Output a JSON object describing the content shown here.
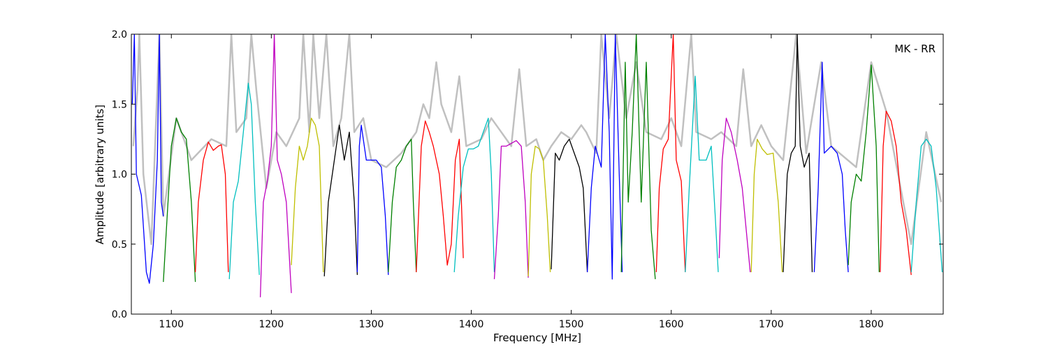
{
  "chart_data": {
    "type": "line",
    "title": "",
    "xlabel": "Frequency [MHz]",
    "ylabel": "Amplitude [arbitrary units]",
    "annotation": "MK - RR",
    "annotation_position": "top-right",
    "xlim": [
      1060,
      1872
    ],
    "ylim": [
      0.0,
      2.0
    ],
    "xticks": [
      1100,
      1200,
      1300,
      1400,
      1500,
      1600,
      1700,
      1800
    ],
    "yticks": [
      0.0,
      0.5,
      1.0,
      1.5,
      2.0
    ],
    "xtick_labels": [
      "1100",
      "1200",
      "1300",
      "1400",
      "1500",
      "1600",
      "1700",
      "1800"
    ],
    "ytick_labels": [
      "0.0",
      "0.5",
      "1.0",
      "1.5",
      "2.0"
    ],
    "grid": false,
    "background_color": "#c0c0c0",
    "background_series": [
      [
        1062,
        1.2
      ],
      [
        1066,
        1.6
      ],
      [
        1068,
        2.0
      ],
      [
        1072,
        1.0
      ],
      [
        1080,
        0.5
      ],
      [
        1088,
        2.0
      ],
      [
        1092,
        0.7
      ],
      [
        1105,
        1.4
      ],
      [
        1120,
        1.1
      ],
      [
        1140,
        1.25
      ],
      [
        1155,
        1.2
      ],
      [
        1160,
        2.0
      ],
      [
        1165,
        1.3
      ],
      [
        1175,
        1.4
      ],
      [
        1180,
        2.0
      ],
      [
        1185,
        1.6
      ],
      [
        1195,
        0.9
      ],
      [
        1205,
        1.3
      ],
      [
        1215,
        1.2
      ],
      [
        1228,
        1.4
      ],
      [
        1232,
        2.0
      ],
      [
        1238,
        1.3
      ],
      [
        1242,
        2.0
      ],
      [
        1248,
        1.4
      ],
      [
        1255,
        2.0
      ],
      [
        1262,
        1.2
      ],
      [
        1270,
        1.4
      ],
      [
        1278,
        2.0
      ],
      [
        1283,
        1.3
      ],
      [
        1292,
        1.4
      ],
      [
        1300,
        1.1
      ],
      [
        1315,
        1.05
      ],
      [
        1330,
        1.15
      ],
      [
        1345,
        1.3
      ],
      [
        1352,
        1.5
      ],
      [
        1358,
        1.4
      ],
      [
        1365,
        1.8
      ],
      [
        1370,
        1.5
      ],
      [
        1380,
        1.3
      ],
      [
        1388,
        1.7
      ],
      [
        1395,
        1.2
      ],
      [
        1410,
        1.25
      ],
      [
        1420,
        1.4
      ],
      [
        1430,
        1.3
      ],
      [
        1440,
        1.2
      ],
      [
        1448,
        1.75
      ],
      [
        1455,
        1.2
      ],
      [
        1465,
        1.25
      ],
      [
        1472,
        1.1
      ],
      [
        1480,
        1.2
      ],
      [
        1490,
        1.3
      ],
      [
        1500,
        1.25
      ],
      [
        1510,
        1.35
      ],
      [
        1515,
        1.3
      ],
      [
        1525,
        1.15
      ],
      [
        1530,
        2.0
      ],
      [
        1538,
        1.4
      ],
      [
        1545,
        2.0
      ],
      [
        1555,
        1.4
      ],
      [
        1565,
        1.8
      ],
      [
        1575,
        1.3
      ],
      [
        1590,
        1.25
      ],
      [
        1600,
        1.4
      ],
      [
        1610,
        1.2
      ],
      [
        1620,
        2.0
      ],
      [
        1625,
        1.3
      ],
      [
        1640,
        1.25
      ],
      [
        1650,
        1.3
      ],
      [
        1665,
        1.2
      ],
      [
        1672,
        1.75
      ],
      [
        1680,
        1.2
      ],
      [
        1690,
        1.35
      ],
      [
        1700,
        1.2
      ],
      [
        1712,
        1.1
      ],
      [
        1725,
        2.0
      ],
      [
        1735,
        1.15
      ],
      [
        1750,
        1.8
      ],
      [
        1760,
        1.2
      ],
      [
        1785,
        1.05
      ],
      [
        1800,
        1.8
      ],
      [
        1815,
        1.45
      ],
      [
        1840,
        0.5
      ],
      [
        1855,
        1.3
      ],
      [
        1870,
        0.8
      ]
    ],
    "series": [
      {
        "color": "#0000ff",
        "points": [
          [
            1061,
            1.5
          ],
          [
            1063,
            2.0
          ],
          [
            1065,
            1.0
          ],
          [
            1070,
            0.85
          ],
          [
            1075,
            0.3
          ],
          [
            1078,
            0.22
          ],
          [
            1082,
            0.5
          ],
          [
            1086,
            1.1
          ],
          [
            1088,
            2.0
          ],
          [
            1090,
            0.8
          ],
          [
            1092,
            0.7
          ]
        ]
      },
      {
        "color": "#008000",
        "points": [
          [
            1092,
            0.23
          ],
          [
            1095,
            0.6
          ],
          [
            1100,
            1.2
          ],
          [
            1105,
            1.4
          ],
          [
            1110,
            1.3
          ],
          [
            1115,
            1.25
          ],
          [
            1120,
            0.8
          ],
          [
            1124,
            0.23
          ]
        ]
      },
      {
        "color": "#ff0000",
        "points": [
          [
            1124,
            0.3
          ],
          [
            1127,
            0.8
          ],
          [
            1132,
            1.1
          ],
          [
            1137,
            1.23
          ],
          [
            1142,
            1.17
          ],
          [
            1147,
            1.2
          ],
          [
            1150,
            1.21
          ],
          [
            1154,
            1.0
          ],
          [
            1157,
            0.3
          ]
        ]
      },
      {
        "color": "#00bfbf",
        "points": [
          [
            1158,
            0.25
          ],
          [
            1162,
            0.8
          ],
          [
            1167,
            0.95
          ],
          [
            1172,
            1.3
          ],
          [
            1177,
            1.65
          ],
          [
            1180,
            1.5
          ],
          [
            1184,
            0.8
          ],
          [
            1188,
            0.28
          ]
        ]
      },
      {
        "color": "#bf00bf",
        "points": [
          [
            1189,
            0.12
          ],
          [
            1192,
            0.8
          ],
          [
            1196,
            0.95
          ],
          [
            1200,
            1.2
          ],
          [
            1203,
            2.0
          ],
          [
            1206,
            1.1
          ],
          [
            1210,
            1.0
          ],
          [
            1215,
            0.8
          ],
          [
            1220,
            0.15
          ]
        ]
      },
      {
        "color": "#bfbf00",
        "points": [
          [
            1220,
            0.35
          ],
          [
            1224,
            0.9
          ],
          [
            1228,
            1.2
          ],
          [
            1232,
            1.1
          ],
          [
            1236,
            1.2
          ],
          [
            1240,
            1.4
          ],
          [
            1244,
            1.35
          ],
          [
            1248,
            1.2
          ],
          [
            1252,
            0.3
          ]
        ]
      },
      {
        "color": "#000000",
        "points": [
          [
            1253,
            0.27
          ],
          [
            1257,
            0.8
          ],
          [
            1262,
            1.05
          ],
          [
            1268,
            1.35
          ],
          [
            1273,
            1.1
          ],
          [
            1278,
            1.3
          ],
          [
            1283,
            0.8
          ],
          [
            1286,
            0.28
          ]
        ]
      },
      {
        "color": "#0000ff",
        "points": [
          [
            1286,
            0.3
          ],
          [
            1288,
            1.2
          ],
          [
            1290,
            1.35
          ],
          [
            1295,
            1.1
          ],
          [
            1300,
            1.1
          ],
          [
            1305,
            1.1
          ],
          [
            1310,
            1.05
          ],
          [
            1314,
            0.7
          ],
          [
            1317,
            0.28
          ]
        ]
      },
      {
        "color": "#008000",
        "points": [
          [
            1317,
            0.3
          ],
          [
            1321,
            0.8
          ],
          [
            1325,
            1.05
          ],
          [
            1330,
            1.1
          ],
          [
            1335,
            1.2
          ],
          [
            1340,
            1.25
          ],
          [
            1342,
            0.8
          ],
          [
            1345,
            0.3
          ]
        ]
      },
      {
        "color": "#ff0000",
        "points": [
          [
            1345,
            0.3
          ],
          [
            1350,
            1.2
          ],
          [
            1354,
            1.38
          ],
          [
            1358,
            1.3
          ],
          [
            1362,
            1.2
          ],
          [
            1368,
            1.0
          ],
          [
            1372,
            0.7
          ],
          [
            1376,
            0.35
          ],
          [
            1380,
            0.5
          ],
          [
            1384,
            1.1
          ],
          [
            1388,
            1.25
          ],
          [
            1392,
            0.4
          ]
        ]
      },
      {
        "color": "#00bfbf",
        "points": [
          [
            1383,
            0.3
          ],
          [
            1387,
            0.7
          ],
          [
            1392,
            1.05
          ],
          [
            1397,
            1.18
          ],
          [
            1402,
            1.18
          ],
          [
            1407,
            1.2
          ],
          [
            1412,
            1.3
          ],
          [
            1417,
            1.4
          ],
          [
            1420,
            1.0
          ],
          [
            1423,
            0.3
          ]
        ]
      },
      {
        "color": "#bf00bf",
        "points": [
          [
            1423,
            0.25
          ],
          [
            1427,
            0.7
          ],
          [
            1430,
            1.2
          ],
          [
            1435,
            1.2
          ],
          [
            1440,
            1.22
          ],
          [
            1445,
            1.24
          ],
          [
            1450,
            1.2
          ],
          [
            1454,
            0.8
          ],
          [
            1457,
            0.26
          ]
        ]
      },
      {
        "color": "#bfbf00",
        "points": [
          [
            1457,
            0.27
          ],
          [
            1460,
            1.0
          ],
          [
            1464,
            1.2
          ],
          [
            1468,
            1.18
          ],
          [
            1472,
            1.1
          ],
          [
            1476,
            0.7
          ],
          [
            1479,
            0.3
          ]
        ]
      },
      {
        "color": "#000000",
        "points": [
          [
            1480,
            0.32
          ],
          [
            1484,
            1.15
          ],
          [
            1488,
            1.1
          ],
          [
            1493,
            1.2
          ],
          [
            1498,
            1.25
          ],
          [
            1503,
            1.15
          ],
          [
            1508,
            1.05
          ],
          [
            1512,
            0.9
          ],
          [
            1516,
            0.3
          ]
        ]
      },
      {
        "color": "#0000ff",
        "points": [
          [
            1516,
            0.3
          ],
          [
            1520,
            0.9
          ],
          [
            1524,
            1.2
          ],
          [
            1530,
            1.05
          ],
          [
            1534,
            2.0
          ],
          [
            1538,
            1.3
          ],
          [
            1541,
            0.25
          ],
          [
            1544,
            2.0
          ],
          [
            1548,
            1.0
          ],
          [
            1551,
            0.3
          ]
        ]
      },
      {
        "color": "#008000",
        "points": [
          [
            1550,
            0.3
          ],
          [
            1554,
            1.8
          ],
          [
            1557,
            0.8
          ],
          [
            1561,
            1.3
          ],
          [
            1565,
            2.0
          ],
          [
            1570,
            0.8
          ],
          [
            1575,
            1.8
          ],
          [
            1580,
            0.6
          ],
          [
            1584,
            0.25
          ]
        ]
      },
      {
        "color": "#ff0000",
        "points": [
          [
            1585,
            0.3
          ],
          [
            1588,
            0.9
          ],
          [
            1592,
            1.18
          ],
          [
            1597,
            1.25
          ],
          [
            1602,
            2.0
          ],
          [
            1605,
            1.1
          ],
          [
            1610,
            0.95
          ],
          [
            1614,
            0.3
          ]
        ]
      },
      {
        "color": "#00bfbf",
        "points": [
          [
            1614,
            0.3
          ],
          [
            1618,
            0.9
          ],
          [
            1621,
            1.3
          ],
          [
            1624,
            1.7
          ],
          [
            1628,
            1.1
          ],
          [
            1635,
            1.1
          ],
          [
            1640,
            1.2
          ],
          [
            1644,
            0.7
          ],
          [
            1647,
            0.3
          ]
        ]
      },
      {
        "color": "#bf00bf",
        "points": [
          [
            1648,
            0.4
          ],
          [
            1651,
            1.1
          ],
          [
            1655,
            1.4
          ],
          [
            1660,
            1.3
          ],
          [
            1666,
            1.1
          ],
          [
            1671,
            0.9
          ],
          [
            1675,
            0.6
          ],
          [
            1679,
            0.3
          ]
        ]
      },
      {
        "color": "#bfbf00",
        "points": [
          [
            1680,
            0.3
          ],
          [
            1683,
            1.0
          ],
          [
            1686,
            1.25
          ],
          [
            1691,
            1.18
          ],
          [
            1696,
            1.14
          ],
          [
            1702,
            1.15
          ],
          [
            1707,
            0.8
          ],
          [
            1711,
            0.3
          ]
        ]
      },
      {
        "color": "#000000",
        "points": [
          [
            1712,
            0.3
          ],
          [
            1716,
            1.0
          ],
          [
            1720,
            1.15
          ],
          [
            1724,
            1.2
          ],
          [
            1726,
            2.0
          ],
          [
            1729,
            1.2
          ],
          [
            1733,
            1.05
          ],
          [
            1738,
            1.15
          ],
          [
            1741,
            0.3
          ]
        ]
      },
      {
        "color": "#0000ff",
        "points": [
          [
            1743,
            0.3
          ],
          [
            1747,
            0.9
          ],
          [
            1751,
            1.8
          ],
          [
            1753,
            1.15
          ],
          [
            1760,
            1.2
          ],
          [
            1766,
            1.15
          ],
          [
            1771,
            1.0
          ],
          [
            1774,
            0.6
          ],
          [
            1777,
            0.3
          ]
        ]
      },
      {
        "color": "#008000",
        "points": [
          [
            1777,
            0.35
          ],
          [
            1780,
            0.8
          ],
          [
            1785,
            1.0
          ],
          [
            1790,
            0.95
          ],
          [
            1795,
            1.3
          ],
          [
            1800,
            1.78
          ],
          [
            1805,
            1.2
          ],
          [
            1808,
            0.3
          ]
        ]
      },
      {
        "color": "#ff0000",
        "points": [
          [
            1809,
            0.3
          ],
          [
            1812,
            1.2
          ],
          [
            1815,
            1.45
          ],
          [
            1820,
            1.38
          ],
          [
            1825,
            1.2
          ],
          [
            1830,
            0.8
          ],
          [
            1835,
            0.6
          ],
          [
            1840,
            0.28
          ]
        ]
      },
      {
        "color": "#00bfbf",
        "points": [
          [
            1840,
            0.3
          ],
          [
            1845,
            0.8
          ],
          [
            1850,
            1.2
          ],
          [
            1855,
            1.25
          ],
          [
            1860,
            1.2
          ],
          [
            1865,
            0.9
          ],
          [
            1871,
            0.3
          ]
        ]
      }
    ]
  }
}
